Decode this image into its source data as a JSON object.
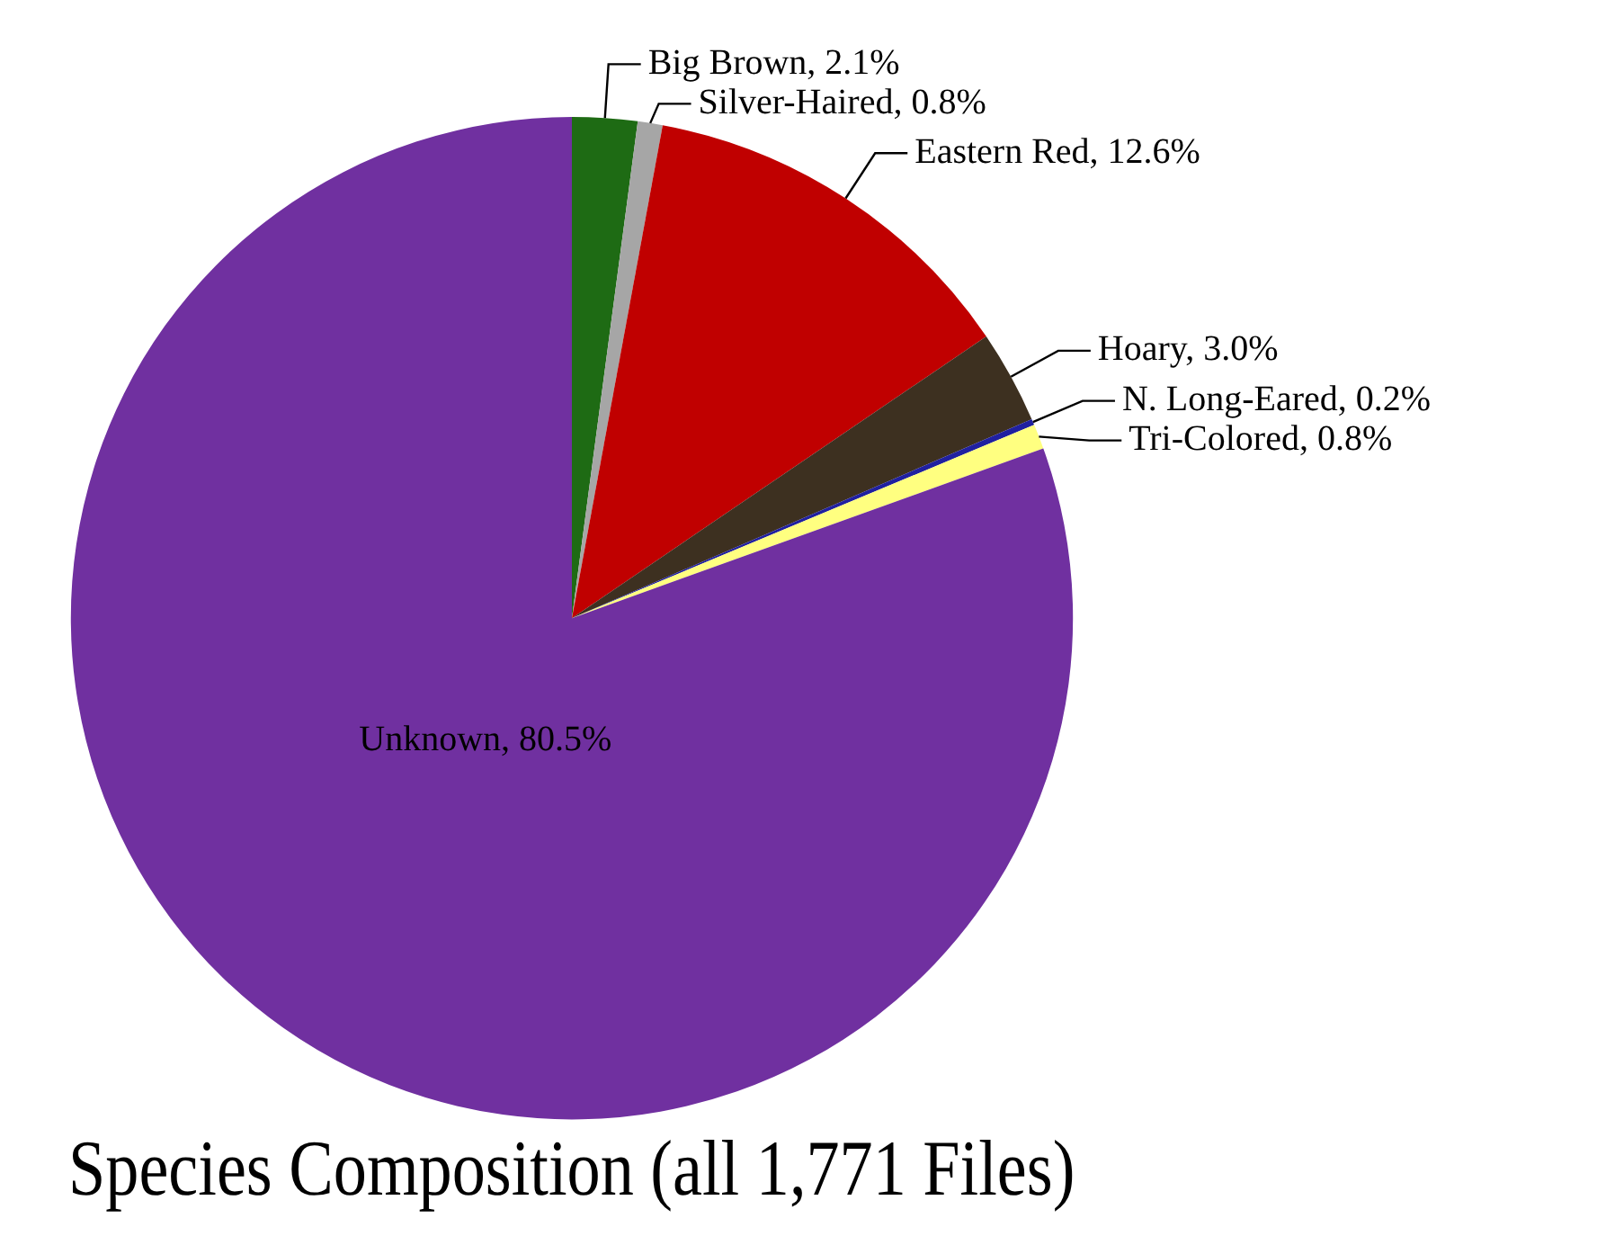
{
  "chart_data": {
    "type": "pie",
    "title": "Species Composition (all 1,771 Files)",
    "categories": [
      "Big Brown",
      "Silver-Haired",
      "Eastern Red",
      "Hoary",
      "N. Long-Eared",
      "Tri-Colored",
      "Unknown"
    ],
    "values": [
      2.1,
      0.8,
      12.6,
      3.0,
      0.2,
      0.8,
      80.5
    ],
    "value_labels": [
      "2.1%",
      "0.8%",
      "12.6%",
      "3.0%",
      "0.2%",
      "0.8%",
      "80.5%"
    ],
    "colors": [
      "#1e6b14",
      "#a6a6a6",
      "#c00000",
      "#3d3020",
      "#2020a0",
      "#ffff80",
      "#7030a0"
    ],
    "legend": false
  }
}
